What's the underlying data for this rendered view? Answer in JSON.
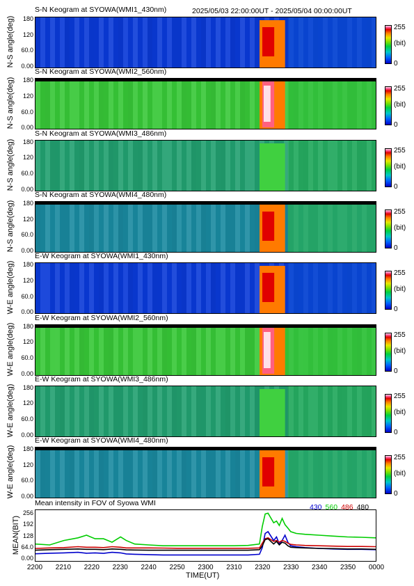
{
  "header": {
    "time_range": "2025/05/03 22:00:00UT - 2025/05/04 00:00:00UT"
  },
  "colorbar": {
    "max_label": "255",
    "unit_label": "(bit)",
    "min_label": "0"
  },
  "keogram_panels": [
    {
      "title": "S-N Keogram at SYOWA(WMI1_430nm)",
      "ylabel": "N-S angle(deg)",
      "yticks": [
        "180",
        "120",
        "60.0",
        "0.00"
      ],
      "channel": "430",
      "intensity": "low"
    },
    {
      "title": "S-N Keogram at SYOWA(WMI2_560nm)",
      "ylabel": "N-S angle(deg)",
      "yticks": [
        "180",
        "120",
        "60.0",
        "0.00"
      ],
      "channel": "560",
      "intensity": "high"
    },
    {
      "title": "S-N Keogram at SYOWA(WMI3_486nm)",
      "ylabel": "N-S angle(deg)",
      "yticks": [
        "180",
        "120",
        "60.0",
        "0.00"
      ],
      "channel": "486",
      "intensity": "flat"
    },
    {
      "title": "S-N Keogram at SYOWA(WMI4_480nm)",
      "ylabel": "N-S angle(deg)",
      "yticks": [
        "180",
        "120",
        "60.0",
        "0.00"
      ],
      "channel": "480",
      "intensity": "medium"
    },
    {
      "title": "E-W Keogram at SYOWA(WMI1_430nm)",
      "ylabel": "W-E angle(deg)",
      "yticks": [
        "180",
        "120",
        "60.0",
        "0.00"
      ],
      "channel": "430",
      "intensity": "low"
    },
    {
      "title": "E-W Keogram at SYOWA(WMI2_560nm)",
      "ylabel": "W-E angle(deg)",
      "yticks": [
        "180",
        "120",
        "60.0",
        "0.00"
      ],
      "channel": "560",
      "intensity": "high"
    },
    {
      "title": "E-W Keogram at SYOWA(WMI3_486nm)",
      "ylabel": "W-E angle(deg)",
      "yticks": [
        "180",
        "120",
        "60.0",
        "0.00"
      ],
      "channel": "486",
      "intensity": "flat"
    },
    {
      "title": "E-W Keogram at SYOWA(WMI4_480nm)",
      "ylabel": "W-E angle(deg)",
      "yticks": [
        "180",
        "120",
        "60.0",
        "0.00"
      ],
      "channel": "480",
      "intensity": "medium"
    }
  ],
  "colors": {
    "c430": "#0000cc",
    "c560": "#00cc00",
    "c486": "#cc0000",
    "c480": "#000000"
  },
  "chart_data": {
    "type": "line",
    "title": "Mean intensity in FOV of Syowa WMI",
    "xlabel": "TIME(UT)",
    "ylabel": "MEAN(BIT)",
    "xticks": [
      "2200",
      "2210",
      "2220",
      "2230",
      "2240",
      "2250",
      "2300",
      "2310",
      "2320",
      "2330",
      "2340",
      "2350",
      "0000"
    ],
    "yticks": [
      "256",
      "192",
      "128",
      "64.0",
      "0.00"
    ],
    "x_minutes": [
      0,
      5,
      10,
      15,
      18,
      21,
      24,
      27,
      30,
      32,
      35,
      40,
      45,
      50,
      55,
      60,
      65,
      70,
      75,
      79,
      80,
      81,
      82,
      84,
      85,
      86,
      87,
      88,
      89,
      90,
      92,
      95,
      100,
      105,
      110,
      115,
      120
    ],
    "ylim": [
      0,
      256
    ],
    "series": [
      {
        "name": "430",
        "values": [
          25,
          28,
          30,
          33,
          28,
          30,
          27,
          33,
          30,
          24,
          22,
          20,
          18,
          18,
          18,
          18,
          18,
          18,
          18,
          22,
          60,
          140,
          150,
          100,
          120,
          80,
          100,
          130,
          90,
          70,
          65,
          60,
          55,
          52,
          50,
          50,
          48
        ]
      },
      {
        "name": "560",
        "values": [
          80,
          75,
          100,
          115,
          130,
          110,
          110,
          90,
          120,
          100,
          80,
          75,
          70,
          70,
          70,
          70,
          70,
          70,
          72,
          80,
          180,
          250,
          255,
          200,
          210,
          185,
          225,
          190,
          170,
          150,
          140,
          135,
          130,
          125,
          120,
          118,
          115
        ]
      },
      {
        "name": "486",
        "values": [
          55,
          58,
          60,
          65,
          62,
          62,
          60,
          65,
          62,
          58,
          58,
          58,
          57,
          56,
          56,
          56,
          56,
          56,
          56,
          58,
          85,
          110,
          115,
          95,
          100,
          90,
          100,
          95,
          85,
          78,
          75,
          72,
          70,
          68,
          66,
          66,
          65
        ]
      },
      {
        "name": "480",
        "values": [
          45,
          48,
          50,
          52,
          50,
          50,
          48,
          52,
          50,
          47,
          46,
          45,
          45,
          45,
          45,
          45,
          45,
          45,
          45,
          48,
          70,
          105,
          110,
          80,
          95,
          75,
          90,
          85,
          70,
          62,
          60,
          58,
          55,
          54,
          52,
          52,
          50
        ]
      }
    ],
    "legend": [
      "430",
      "560",
      "486",
      "480"
    ]
  }
}
